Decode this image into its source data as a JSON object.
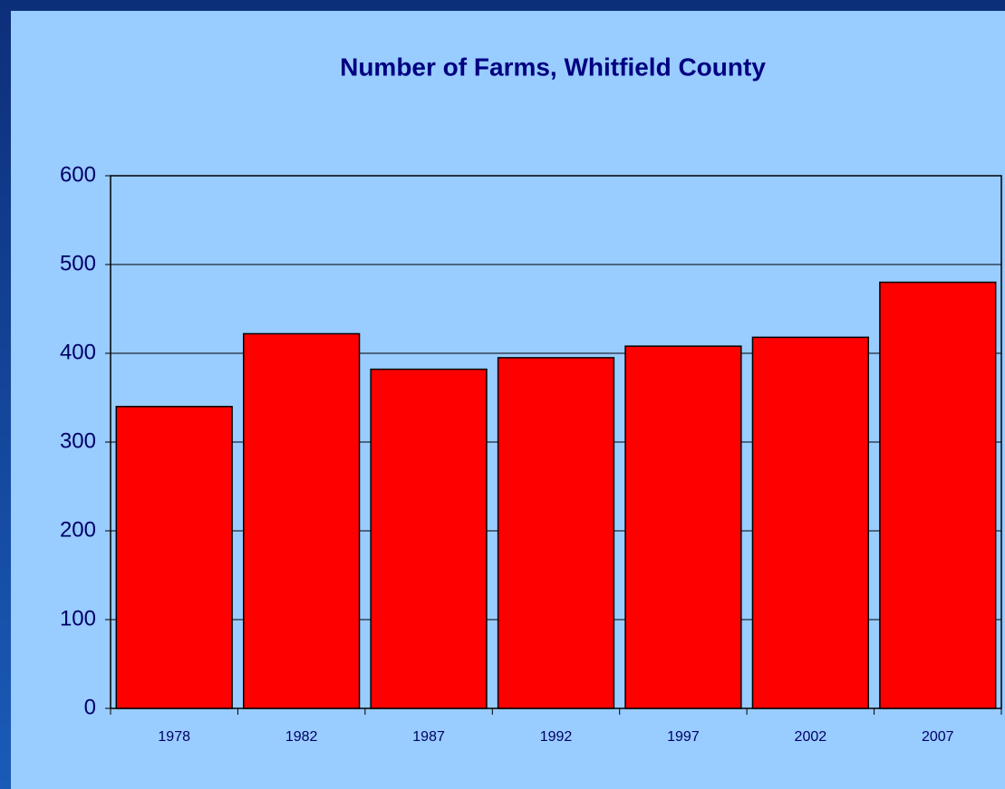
{
  "chart_data": {
    "type": "bar",
    "title": "Number of Farms, Whitfield County",
    "categories": [
      "1978",
      "1982",
      "1987",
      "1992",
      "1997",
      "2002",
      "2007"
    ],
    "values": [
      340,
      422,
      382,
      395,
      408,
      418,
      480
    ],
    "color": "#ff0000",
    "ylim": [
      0,
      600
    ],
    "yticks": [
      0,
      100,
      200,
      300,
      400,
      500,
      600
    ],
    "grid": true
  }
}
